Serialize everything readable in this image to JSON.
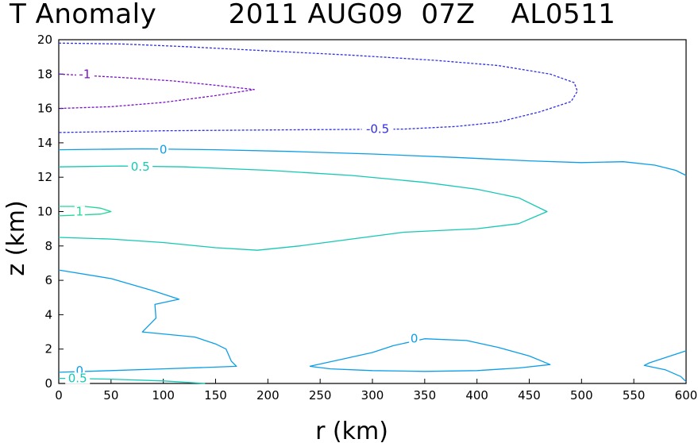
{
  "chart_data": {
    "type": "contour",
    "title": "T Anomaly        2011 AUG09  07Z    AL0511",
    "xlabel": "r  (km)",
    "ylabel": "z  (km)",
    "xlim": [
      0,
      600
    ],
    "ylim": [
      0,
      20
    ],
    "xticks": [
      0,
      50,
      100,
      150,
      200,
      250,
      300,
      350,
      400,
      450,
      500,
      550,
      600
    ],
    "yticks": [
      0,
      2,
      4,
      6,
      8,
      10,
      12,
      14,
      16,
      18,
      20
    ],
    "grid": false,
    "contours": [
      {
        "level": "-1",
        "color": "#7a10c8",
        "dashed": true,
        "label_at": [
          25,
          18.0
        ],
        "points": [
          [
            0,
            18.0
          ],
          [
            60,
            17.8
          ],
          [
            110,
            17.6
          ],
          [
            150,
            17.35
          ],
          [
            187,
            17.1
          ],
          [
            150,
            16.75
          ],
          [
            100,
            16.35
          ],
          [
            50,
            16.1
          ],
          [
            0,
            16.0
          ]
        ]
      },
      {
        "level": "-0.5",
        "color": "#2e2ee6",
        "dashed": true,
        "label_at": [
          305,
          14.8
        ],
        "points": [
          [
            0,
            19.8
          ],
          [
            60,
            19.75
          ],
          [
            120,
            19.6
          ],
          [
            200,
            19.35
          ],
          [
            280,
            19.1
          ],
          [
            360,
            18.8
          ],
          [
            420,
            18.5
          ],
          [
            470,
            18.0
          ],
          [
            493,
            17.5
          ],
          [
            496,
            17.0
          ],
          [
            490,
            16.4
          ],
          [
            460,
            15.8
          ],
          [
            420,
            15.2
          ],
          [
            380,
            14.95
          ],
          [
            330,
            14.8
          ],
          [
            200,
            14.75
          ],
          [
            100,
            14.7
          ],
          [
            0,
            14.6
          ]
        ]
      },
      {
        "level": "0",
        "color": "#0b9ee8",
        "dashed": false,
        "label_at": [
          100,
          13.6
        ],
        "points": [
          [
            0,
            13.6
          ],
          [
            80,
            13.65
          ],
          [
            150,
            13.6
          ],
          [
            220,
            13.5
          ],
          [
            300,
            13.35
          ],
          [
            380,
            13.15
          ],
          [
            450,
            12.95
          ],
          [
            500,
            12.85
          ],
          [
            540,
            12.9
          ],
          [
            570,
            12.7
          ],
          [
            590,
            12.4
          ],
          [
            600,
            12.1
          ]
        ]
      },
      {
        "level": "0.5",
        "color": "#14c8b4",
        "dashed": false,
        "label_at": [
          78,
          12.6
        ],
        "points": [
          [
            0,
            12.6
          ],
          [
            60,
            12.65
          ],
          [
            120,
            12.6
          ],
          [
            200,
            12.4
          ],
          [
            280,
            12.1
          ],
          [
            350,
            11.7
          ],
          [
            400,
            11.3
          ],
          [
            440,
            10.8
          ],
          [
            467,
            10.0
          ],
          [
            440,
            9.3
          ],
          [
            400,
            9.0
          ],
          [
            330,
            8.8
          ],
          [
            280,
            8.4
          ],
          [
            230,
            8.0
          ],
          [
            190,
            7.75
          ],
          [
            150,
            7.9
          ],
          [
            100,
            8.2
          ],
          [
            50,
            8.4
          ],
          [
            0,
            8.5
          ]
        ]
      },
      {
        "level": "1",
        "color": "#1ed696",
        "dashed": false,
        "label_at": [
          20,
          10.0
        ],
        "points": [
          [
            0,
            10.3
          ],
          [
            25,
            10.3
          ],
          [
            40,
            10.2
          ],
          [
            50,
            10.0
          ],
          [
            40,
            9.85
          ],
          [
            20,
            9.8
          ],
          [
            0,
            9.75
          ]
        ]
      },
      {
        "level": "0",
        "color": "#0b9ee8",
        "dashed": false,
        "label_at": null,
        "points": [
          [
            0,
            6.6
          ],
          [
            50,
            6.1
          ],
          [
            90,
            5.4
          ],
          [
            115,
            4.9
          ],
          [
            92,
            4.6
          ],
          [
            93,
            3.8
          ],
          [
            80,
            3.0
          ],
          [
            130,
            2.7
          ],
          [
            150,
            2.3
          ],
          [
            160,
            2.0
          ],
          [
            165,
            1.3
          ],
          [
            170,
            1.0
          ],
          [
            150,
            0.95
          ],
          [
            100,
            0.85
          ],
          [
            50,
            0.75
          ],
          [
            0,
            0.65
          ]
        ]
      },
      {
        "level": "0",
        "color": "#0b9ee8",
        "dashed": false,
        "label_at": [
          340,
          2.6
        ],
        "points": [
          [
            240,
            1.0
          ],
          [
            270,
            1.4
          ],
          [
            300,
            1.8
          ],
          [
            320,
            2.2
          ],
          [
            350,
            2.6
          ],
          [
            390,
            2.5
          ],
          [
            420,
            2.1
          ],
          [
            450,
            1.6
          ],
          [
            470,
            1.1
          ],
          [
            440,
            0.9
          ],
          [
            400,
            0.75
          ],
          [
            350,
            0.7
          ],
          [
            300,
            0.75
          ],
          [
            260,
            0.85
          ],
          [
            240,
            1.0
          ]
        ]
      },
      {
        "level": "0",
        "color": "#0b9ee8",
        "dashed": false,
        "label_at": null,
        "points": [
          [
            600,
            1.9
          ],
          [
            580,
            1.5
          ],
          [
            565,
            1.2
          ],
          [
            560,
            1.05
          ],
          [
            580,
            0.8
          ],
          [
            595,
            0.4
          ],
          [
            600,
            0.1
          ]
        ]
      },
      {
        "level": "0",
        "color": "#0b9ee8",
        "dashed": false,
        "label_at": [
          20,
          0.75
        ],
        "points": []
      },
      {
        "level": "0.5",
        "color": "#14c8b4",
        "dashed": false,
        "label_at": [
          18,
          0.3
        ],
        "points": [
          [
            0,
            0.3
          ],
          [
            50,
            0.25
          ],
          [
            100,
            0.15
          ],
          [
            140,
            0.0
          ]
        ]
      }
    ]
  }
}
